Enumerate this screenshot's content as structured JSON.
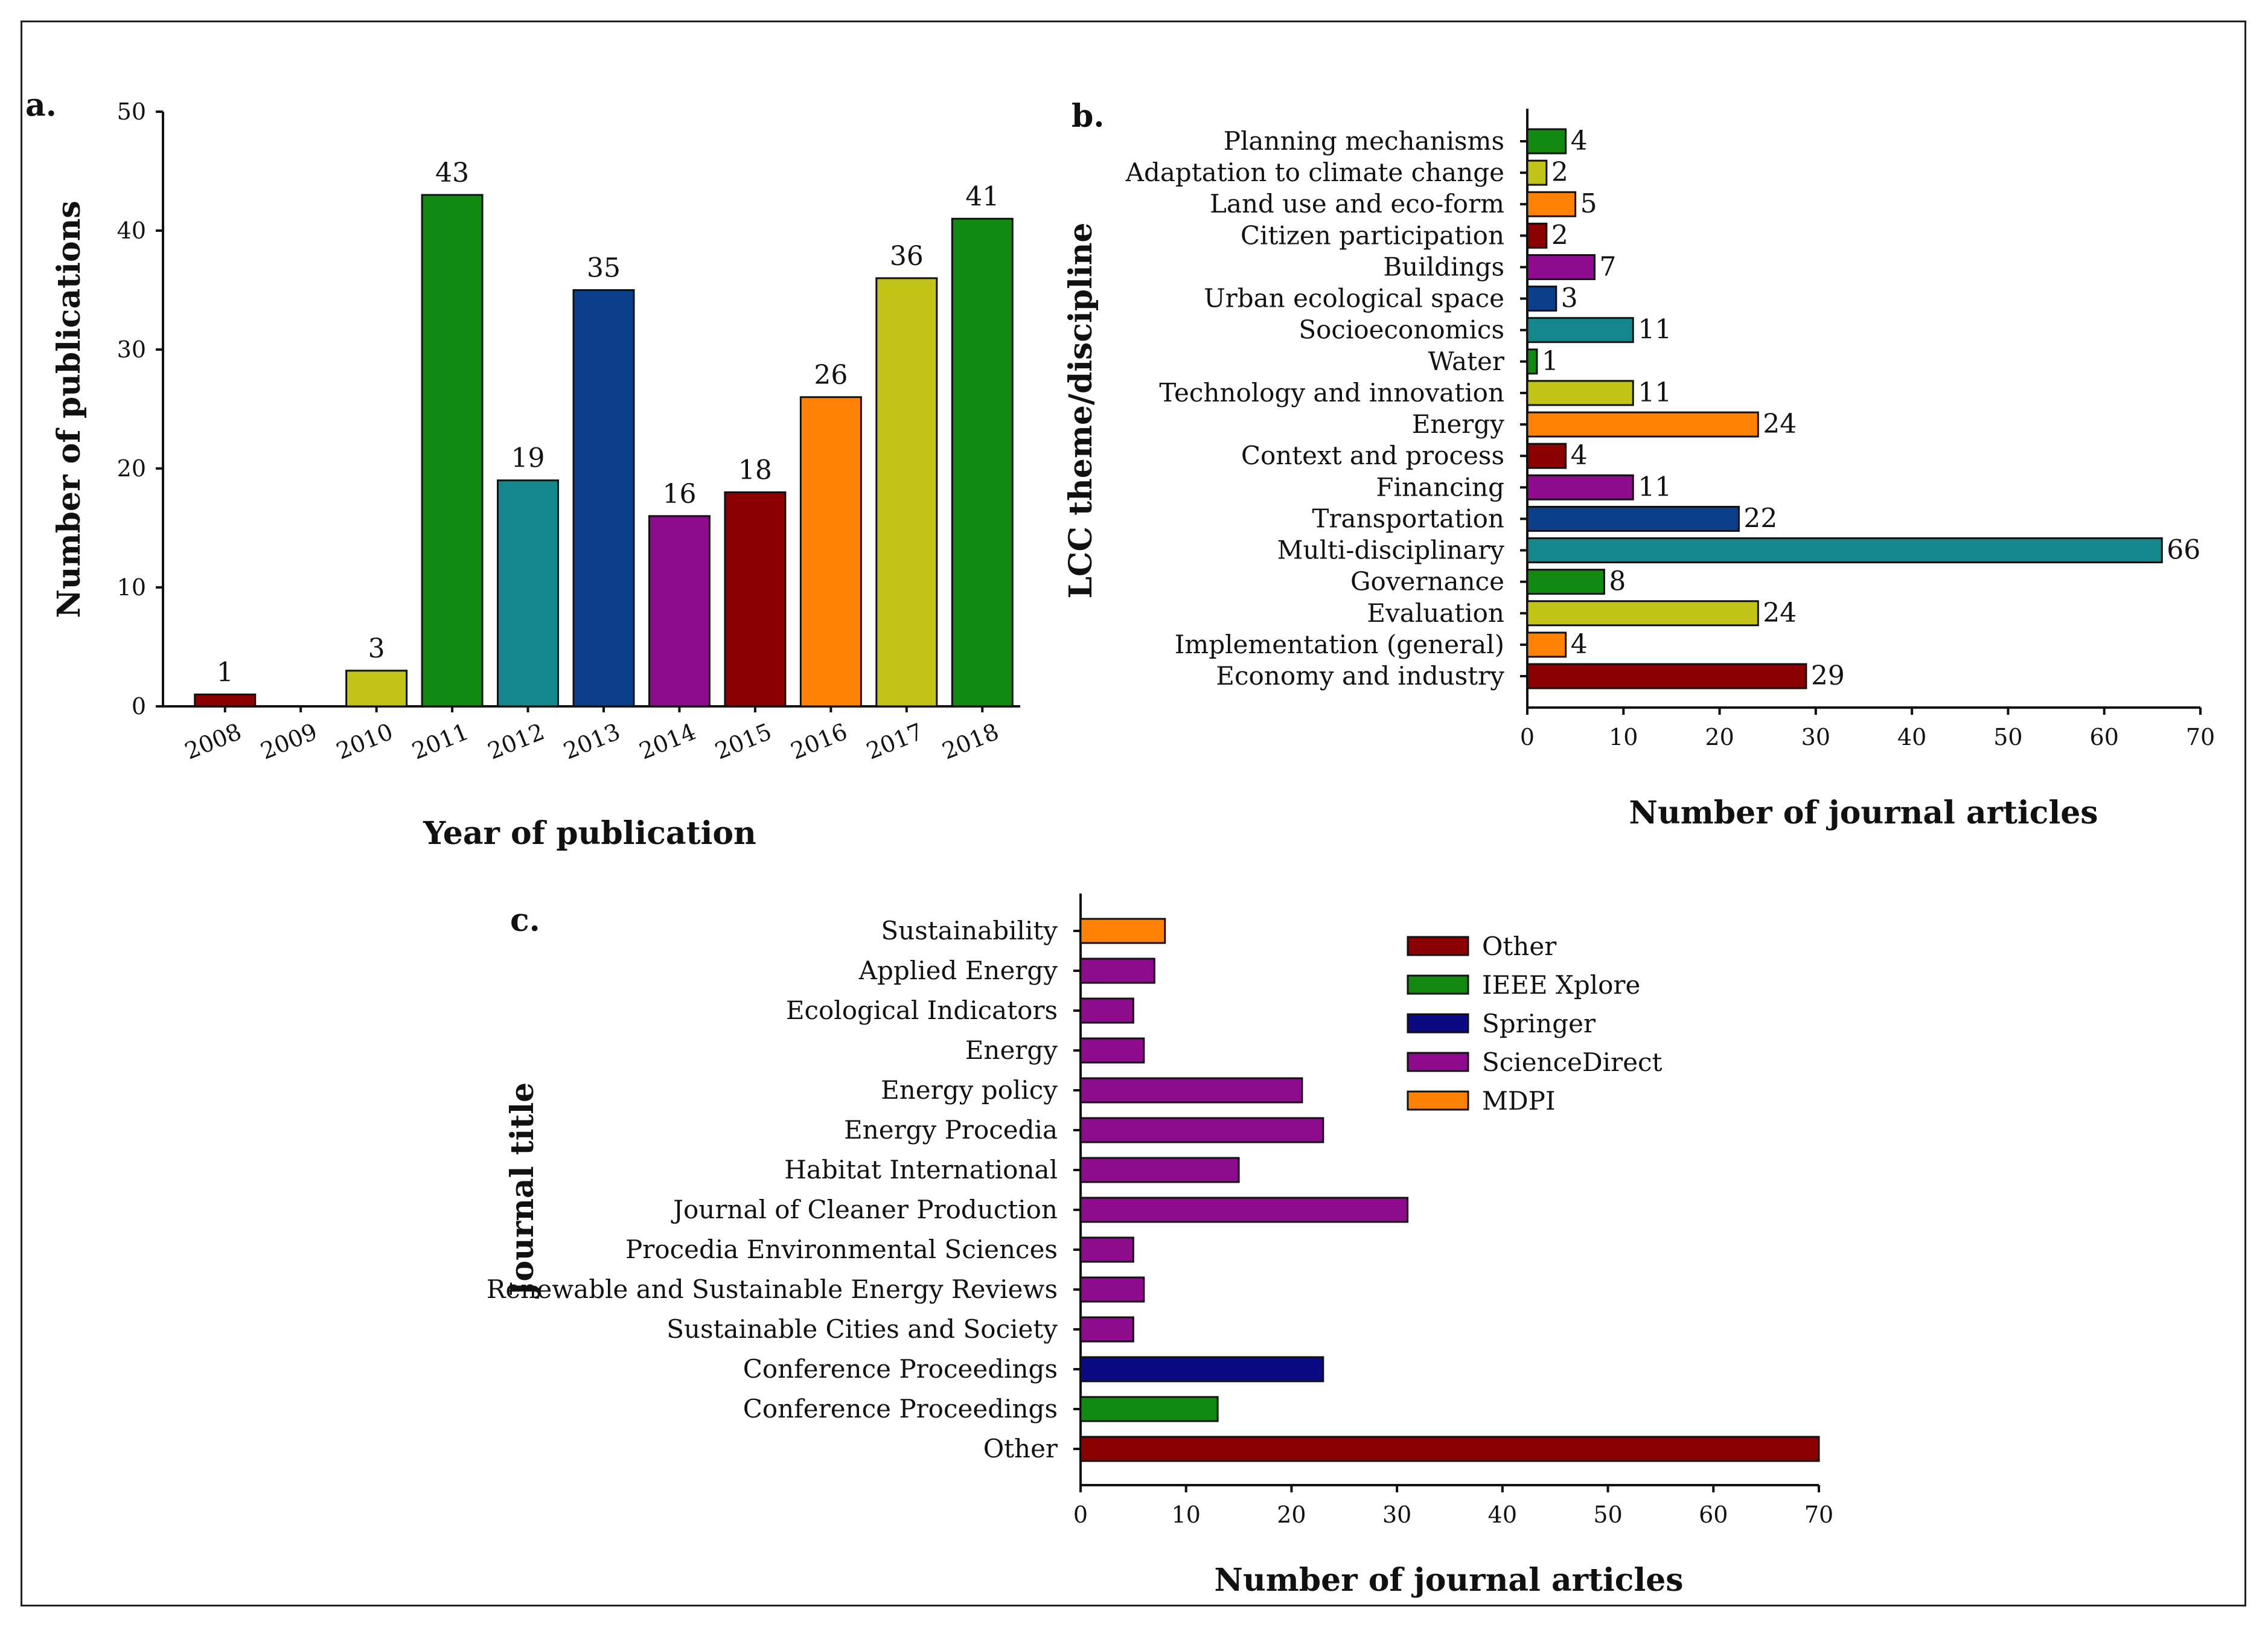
{
  "panels": {
    "a": {
      "label": "a."
    },
    "b": {
      "label": "b."
    },
    "c": {
      "label": "c."
    }
  },
  "colors": {
    "darkred": "#8b0000",
    "olive": "#c3c318",
    "green": "#128a12",
    "teal": "#14878c",
    "navy": "#0b3f8a",
    "purple": "#8e0b8e",
    "orange": "#ff8205",
    "darkblue": "#0a0a82"
  },
  "chart_data": [
    {
      "id": "a",
      "type": "bar",
      "title": "",
      "xlabel": "Year of publication",
      "ylabel": "Number of publications",
      "ylim": [
        0,
        50
      ],
      "yticks": [
        0,
        10,
        20,
        30,
        40,
        50
      ],
      "categories": [
        "2008",
        "2009",
        "2010",
        "2011",
        "2012",
        "2013",
        "2014",
        "2015",
        "2016",
        "2017",
        "2018"
      ],
      "values": [
        1,
        0,
        3,
        43,
        19,
        35,
        16,
        18,
        26,
        36,
        41
      ],
      "data_labels": [
        "1",
        "",
        "3",
        "43",
        "19",
        "35",
        "16",
        "18",
        "26",
        "36",
        "41"
      ],
      "bar_colors": [
        "#8b0000",
        "#c3c318",
        "#c3c318",
        "#128a12",
        "#14878c",
        "#0b3f8a",
        "#8e0b8e",
        "#8b0000",
        "#ff8205",
        "#c3c318",
        "#128a12"
      ]
    },
    {
      "id": "b",
      "type": "bar",
      "orientation": "horizontal",
      "title": "",
      "xlabel": "Number of journal articles",
      "ylabel": "LCC theme/discipline",
      "xlim": [
        0,
        70
      ],
      "xticks": [
        0,
        10,
        20,
        30,
        40,
        50,
        60,
        70
      ],
      "categories": [
        "Planning mechanisms",
        "Adaptation to climate change",
        "Land use and eco-form",
        "Citizen participation",
        "Buildings",
        "Urban ecological space",
        "Socioeconomics",
        "Water",
        "Technology and innovation",
        "Energy",
        "Context and process",
        "Financing",
        "Transportation",
        "Multi-disciplinary",
        "Governance",
        "Evaluation",
        "Implementation (general)",
        "Economy and industry"
      ],
      "values": [
        4,
        2,
        5,
        2,
        7,
        3,
        11,
        1,
        11,
        24,
        4,
        11,
        22,
        66,
        8,
        24,
        4,
        29
      ],
      "data_labels": [
        "4",
        "2",
        "5",
        "2",
        "7",
        "3",
        "11",
        "1",
        "11",
        "24",
        "4",
        "11",
        "22",
        "66",
        "8",
        "24",
        "4",
        "29"
      ],
      "bar_colors": [
        "#128a12",
        "#c3c318",
        "#ff8205",
        "#8b0000",
        "#8e0b8e",
        "#0b3f8a",
        "#14878c",
        "#128a12",
        "#c3c318",
        "#ff8205",
        "#8b0000",
        "#8e0b8e",
        "#0b3f8a",
        "#14878c",
        "#128a12",
        "#c3c318",
        "#ff8205",
        "#8b0000"
      ]
    },
    {
      "id": "c",
      "type": "bar",
      "orientation": "horizontal",
      "title": "",
      "xlabel": "Number of journal articles",
      "ylabel": "Journal title",
      "xlim": [
        0,
        70
      ],
      "xticks": [
        0,
        10,
        20,
        30,
        40,
        50,
        60,
        70
      ],
      "categories": [
        "Sustainability",
        "Applied Energy",
        "Ecological Indicators",
        "Energy",
        "Energy policy",
        "Energy Procedia",
        "Habitat International",
        "Journal of Cleaner Production",
        "Procedia Environmental Sciences",
        "Renewable and Sustainable Energy Reviews",
        "Sustainable Cities and Society",
        "Conference Proceedings",
        "Conference Proceedings",
        "Other"
      ],
      "values": [
        8,
        7,
        5,
        6,
        21,
        23,
        15,
        31,
        5,
        6,
        5,
        23,
        13,
        70
      ],
      "sources": [
        "MDPI",
        "ScienceDirect",
        "ScienceDirect",
        "ScienceDirect",
        "ScienceDirect",
        "ScienceDirect",
        "ScienceDirect",
        "ScienceDirect",
        "ScienceDirect",
        "ScienceDirect",
        "ScienceDirect",
        "Springer",
        "IEEE Xplore",
        "Other"
      ],
      "legend": [
        {
          "name": "Other",
          "color": "#8b0000"
        },
        {
          "name": "IEEE Xplore",
          "color": "#128a12"
        },
        {
          "name": "Springer",
          "color": "#0a0a82"
        },
        {
          "name": "ScienceDirect",
          "color": "#8e0b8e"
        },
        {
          "name": "MDPI",
          "color": "#ff8205"
        }
      ],
      "legend_position": "top-right"
    }
  ]
}
